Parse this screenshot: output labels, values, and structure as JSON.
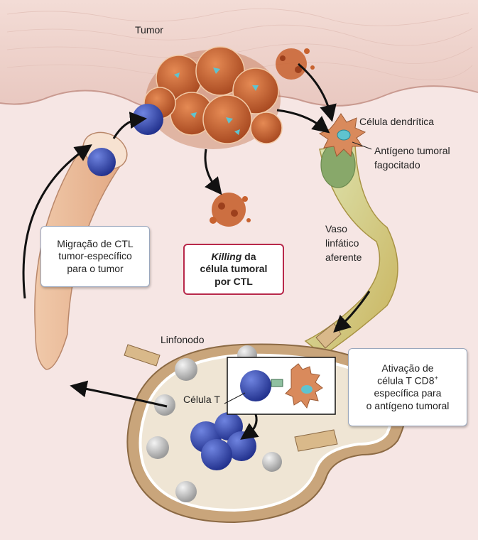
{
  "labels": {
    "tumor": "Tumor",
    "dendritic_cell": "Célula dendrítica",
    "phagocytosed_antigen_1": "Antígeno tumoral",
    "phagocytosed_antigen_2": "fagocitado",
    "afferent_vessel_1": "Vaso",
    "afferent_vessel_2": "linfático",
    "afferent_vessel_3": "aferente",
    "lymph_node": "Linfonodo",
    "t_cell": "Célula T"
  },
  "boxes": {
    "migration": {
      "line1": "Migração de CTL",
      "line2": "tumor-específico",
      "line3": "para o tumor"
    },
    "killing": {
      "italic": "Killing",
      "line1_rest": " da",
      "line2": "célula tumoral",
      "line3": "por CTL"
    },
    "activation": {
      "line1": "Ativação de",
      "line2_prefix": "célula T CD8",
      "line2_sup": "+",
      "line3": "específica para",
      "line4": "o antígeno tumoral"
    }
  },
  "colors": {
    "skin_top": "#f2dcd6",
    "tissue": "#f6e6e4",
    "tumor_cell": "#c8622f",
    "tumor_nucleus": "#9c3f1c",
    "t_cell": "#3a4fb8",
    "dendritic_cell": "#d98a5c",
    "antigen": "#5fc3cf",
    "lymph_node_outer": "#c9a57b",
    "lymph_node_inner": "#efe5d4",
    "killing_border": "#b8284a",
    "info_border": "#9aa7bd"
  }
}
